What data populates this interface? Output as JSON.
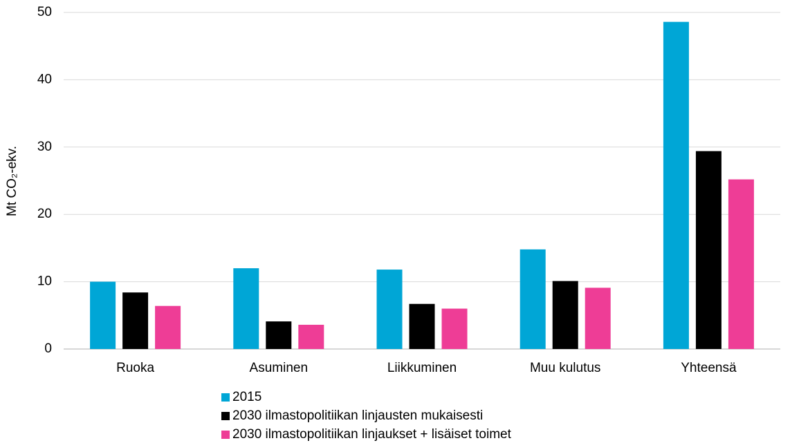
{
  "chart_data": {
    "type": "bar",
    "ylabel": "Mt CO₂-ekv.",
    "categories": [
      "Ruoka",
      "Asuminen",
      "Liikkuminen",
      "Muu kulutus",
      "Yhteensä"
    ],
    "series": [
      {
        "name": "2015",
        "color": "#00a6d6",
        "values": [
          10,
          12,
          11.8,
          14.8,
          48.6
        ]
      },
      {
        "name": "2030 ilmastopolitiikan linjausten mukaisesti",
        "color": "#000000",
        "values": [
          8.4,
          4.1,
          6.7,
          10.1,
          29.4
        ]
      },
      {
        "name": "2030 ilmastopolitiikan linjaukset + lisäiset toimet",
        "color": "#ee3d96",
        "values": [
          6.4,
          3.6,
          6.0,
          9.1,
          25.2
        ]
      }
    ],
    "ylim": [
      0,
      50
    ],
    "yticks": [
      0,
      10,
      20,
      30,
      40,
      50
    ],
    "grid": true,
    "legend": "bottom"
  }
}
